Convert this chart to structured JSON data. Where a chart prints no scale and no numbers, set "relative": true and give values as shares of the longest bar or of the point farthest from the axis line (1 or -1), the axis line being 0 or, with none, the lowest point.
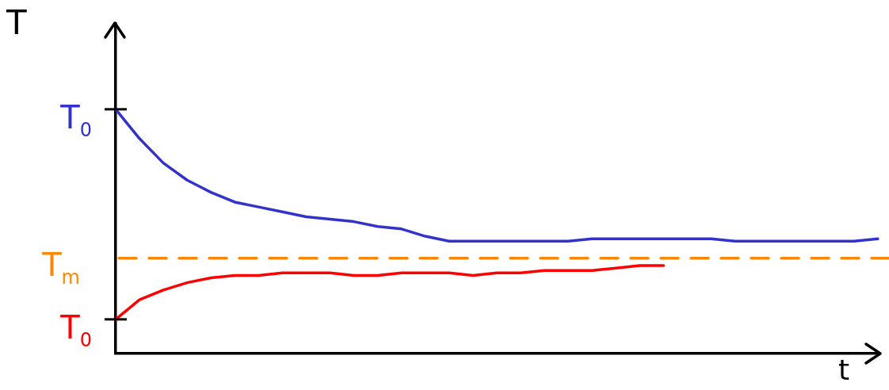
{
  "chart_data": {
    "type": "line",
    "relative": true,
    "xlabel": "t",
    "ylabel": "T",
    "categories": [
      null,
      null,
      null,
      null,
      null,
      null,
      null,
      null,
      null,
      null,
      null,
      null,
      null,
      null,
      null,
      null,
      null,
      null,
      null,
      null,
      null,
      null,
      null,
      null,
      null,
      null,
      null,
      null,
      null,
      null,
      null,
      null,
      null
    ],
    "series": [
      {
        "name": "T$_{0}$",
        "color": "#3333cc",
        "values": [
          1.0,
          0.88,
          0.78,
          0.71,
          0.66,
          0.62,
          0.6,
          0.58,
          0.56,
          0.55,
          0.54,
          0.52,
          0.51,
          0.48,
          0.46,
          0.46,
          0.46,
          0.46,
          0.46,
          0.46,
          0.47,
          0.47,
          0.47,
          0.47,
          0.47,
          0.47,
          0.46,
          0.46,
          0.46,
          0.46,
          0.46,
          0.46,
          0.47
        ]
      },
      {
        "name": "T$_{0}$",
        "color": "#ff0000",
        "values": [
          0.14,
          0.22,
          0.26,
          0.29,
          0.31,
          0.32,
          0.32,
          0.33,
          0.33,
          0.33,
          0.32,
          0.32,
          0.33,
          0.33,
          0.33,
          0.32,
          0.33,
          0.33,
          0.34,
          0.34,
          0.34,
          0.35,
          0.36,
          0.36,
          null,
          null,
          null,
          null,
          null,
          null,
          null,
          null,
          null
        ]
      }
    ],
    "ref_lines": [
      {
        "axis": "y",
        "value": 0.39,
        "label": "T$_{m}$",
        "color": "#ff8800",
        "line_style": "dashed"
      }
    ],
    "legend": false,
    "marker": "none",
    "line_style": "solid"
  }
}
